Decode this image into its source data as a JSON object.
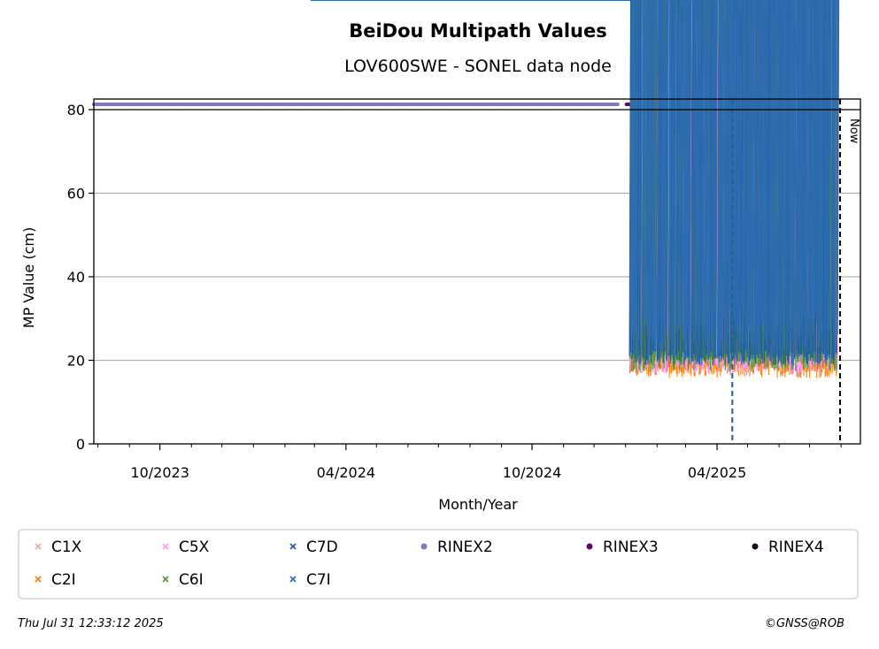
{
  "chart_data": {
    "type": "scatter",
    "title": "BeiDou Multipath Values",
    "subtitle": "LOV600SWE - SONEL data node",
    "xlabel": "Month/Year",
    "ylabel": "MP Value (cm)",
    "x_range": [
      "2023-07-28",
      "2025-08-20"
    ],
    "ylim": [
      0,
      80
    ],
    "y_ticks": [
      0,
      20,
      40,
      60,
      80
    ],
    "x_ticks": [
      {
        "date": "2023-10-01",
        "label": "10/2023"
      },
      {
        "date": "2024-04-01",
        "label": "04/2024"
      },
      {
        "date": "2024-10-01",
        "label": "10/2024"
      },
      {
        "date": "2025-04-01",
        "label": "04/2025"
      }
    ],
    "x_minor_ticks": [
      "2023-08-01",
      "2023-09-01",
      "2023-11-01",
      "2023-12-01",
      "2024-01-01",
      "2024-02-01",
      "2024-03-01",
      "2024-05-01",
      "2024-06-01",
      "2024-07-01",
      "2024-08-01",
      "2024-09-01",
      "2024-11-01",
      "2024-12-01",
      "2025-01-01",
      "2025-02-01",
      "2025-03-01",
      "2025-05-01",
      "2025-06-01",
      "2025-07-01",
      "2025-08-01"
    ],
    "grid": "horizontal",
    "data_start": "2025-01-06",
    "data_end": "2025-07-29",
    "series": [
      {
        "name": "C1X",
        "color": "#f4a6a6",
        "marker": "x",
        "typical": [
          17,
          21
        ]
      },
      {
        "name": "C2I",
        "color": "#ff7f0e",
        "marker": "x",
        "typical": [
          15.5,
          18.5
        ]
      },
      {
        "name": "C5X",
        "color": "#ff99ff",
        "marker": "x",
        "typical": [
          16.5,
          20
        ]
      },
      {
        "name": "C6I",
        "color": "#5a9a3a",
        "marker": "x",
        "typical": [
          17,
          21
        ]
      },
      {
        "name": "C7D",
        "color": "#1f5fa0",
        "marker": "x",
        "typical": [
          18.5,
          22
        ]
      },
      {
        "name": "C7I",
        "color": "#2e6db0",
        "marker": "x",
        "typical": [
          20,
          28
        ]
      }
    ],
    "rinex_bars": [
      {
        "name": "RINEX2",
        "color": "#8079c0",
        "start": "2023-07-28",
        "end": "2024-12-26"
      },
      {
        "name": "RINEX3",
        "color": "#5e0a5e",
        "start": "2025-01-02",
        "end": "2025-07-28"
      },
      {
        "name": "RINEX4",
        "color": "#1a001a"
      }
    ],
    "markers": [
      {
        "date": "2025-04-16",
        "style": "dashed",
        "color": "#1f5fa0"
      },
      {
        "date": "2025-07-31",
        "style": "dashed",
        "color": "#000000",
        "label": "Now"
      }
    ],
    "legend": {
      "position": "bottom",
      "items": [
        {
          "name": "C1X",
          "color": "#f4a6a6",
          "marker": "x"
        },
        {
          "name": "C5X",
          "color": "#ff99ff",
          "marker": "x"
        },
        {
          "name": "C7D",
          "color": "#1f5fa0",
          "marker": "x"
        },
        {
          "name": "RINEX2",
          "color": "#8079c0",
          "marker": "dot"
        },
        {
          "name": "RINEX3",
          "color": "#5e0a5e",
          "marker": "dot"
        },
        {
          "name": "RINEX4",
          "color": "#1a001a",
          "marker": "dot"
        },
        {
          "name": "C2I",
          "color": "#ff7f0e",
          "marker": "x"
        },
        {
          "name": "C6I",
          "color": "#5a9a3a",
          "marker": "x"
        },
        {
          "name": "C7I",
          "color": "#2e6db0",
          "marker": "x"
        }
      ]
    }
  },
  "footer": {
    "timestamp": "Thu Jul 31 12:33:12 2025",
    "credit": "©GNSS@ROB"
  }
}
